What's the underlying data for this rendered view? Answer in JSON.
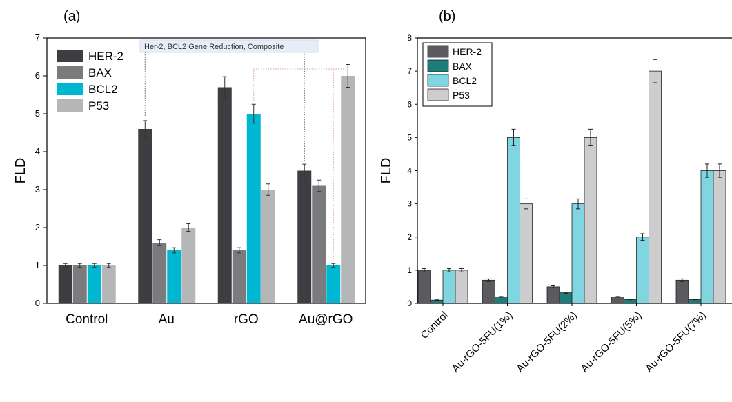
{
  "chart_data": [
    {
      "panel": "(a)",
      "type": "bar",
      "ylabel": "FLD",
      "xlabel": "",
      "ylim": [
        0,
        7
      ],
      "yticks": [
        "0",
        "1",
        "2",
        "3",
        "4",
        "5",
        "6",
        "7"
      ],
      "categories": [
        "Control",
        "Au",
        "rGO",
        "Au@rGO"
      ],
      "series": [
        {
          "name": "HER-2",
          "values": [
            1.0,
            4.6,
            5.7,
            3.5
          ],
          "errors": [
            0.05,
            0.22,
            0.28,
            0.17
          ],
          "color": "#3d3e42"
        },
        {
          "name": "BAX",
          "values": [
            1.0,
            1.6,
            1.4,
            3.1
          ],
          "errors": [
            0.05,
            0.08,
            0.07,
            0.15
          ],
          "color": "#7b7b7d"
        },
        {
          "name": "BCL2",
          "values": [
            1.0,
            1.4,
            5.0,
            1.0
          ],
          "errors": [
            0.05,
            0.07,
            0.25,
            0.05
          ],
          "color": "#00b7d1"
        },
        {
          "name": "P53",
          "values": [
            1.0,
            2.0,
            3.0,
            6.0
          ],
          "errors": [
            0.05,
            0.1,
            0.15,
            0.3
          ],
          "color": "#b4b6b8"
        }
      ],
      "legend_position": "top-left",
      "annotation": "Her-2, BCL2 Gene Reduction, Composite"
    },
    {
      "panel": "(b)",
      "type": "bar",
      "ylabel": "FLD",
      "xlabel": "",
      "ylim": [
        0,
        8
      ],
      "yticks": [
        "0",
        "1",
        "2",
        "3",
        "4",
        "5",
        "6",
        "7",
        "8"
      ],
      "categories": [
        "Control",
        "Au-rGO-5FU(1%)",
        "Au-rGO-5FU(2%)",
        "Au-rGO-5FU(5%)",
        "Au-rGO-5FU(7%)"
      ],
      "series": [
        {
          "name": "HER-2",
          "values": [
            1.0,
            0.7,
            0.5,
            0.2,
            0.7
          ],
          "errors": [
            0.05,
            0.04,
            0.03,
            0.01,
            0.04
          ],
          "color": "#5b5b5f"
        },
        {
          "name": "BAX",
          "values": [
            0.1,
            0.2,
            0.32,
            0.12,
            0.12
          ],
          "errors": [
            0.01,
            0.01,
            0.02,
            0.01,
            0.01
          ],
          "color": "#1d7d7b"
        },
        {
          "name": "BCL2",
          "values": [
            1.0,
            5.0,
            3.0,
            2.0,
            4.0
          ],
          "errors": [
            0.05,
            0.25,
            0.15,
            0.1,
            0.2
          ],
          "color": "#80d6e0"
        },
        {
          "name": "P53",
          "values": [
            1.0,
            3.0,
            5.0,
            7.0,
            4.0
          ],
          "errors": [
            0.05,
            0.15,
            0.25,
            0.35,
            0.2
          ],
          "color": "#cdcdcf"
        }
      ],
      "legend_position": "top-left"
    }
  ]
}
